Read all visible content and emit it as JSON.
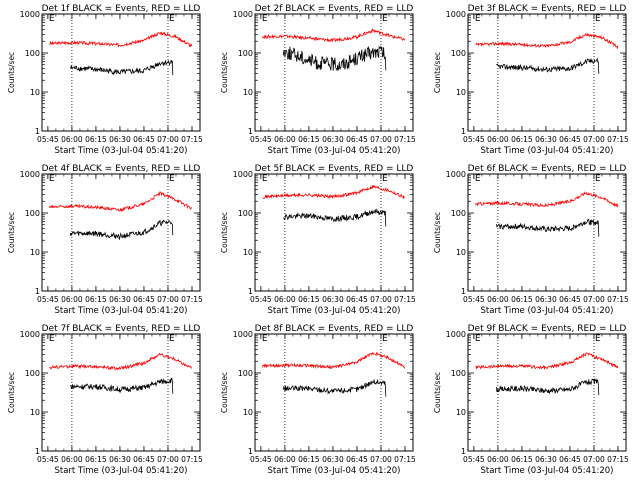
{
  "chart_data": [
    {
      "type": "line",
      "title": "Det 1f BLACK = Events, RED = LLD",
      "xlabel": "Start Time (03-Jul-04 05:41:20)",
      "ylabel": "Counts/sec",
      "x_tick_labels": [
        "05:45",
        "06:00",
        "06:15",
        "06:30",
        "06:45",
        "07:00",
        "07:15"
      ],
      "y_tick_labels": [
        "1",
        "10",
        "100",
        "1000"
      ],
      "ylim": [
        1,
        1000
      ],
      "y_scale": "log",
      "dotted_vlines": [
        "06:00",
        "07:00"
      ],
      "markers": [
        {
          "time": "05:45",
          "text": "E"
        },
        {
          "time": "07:00",
          "text": "E"
        }
      ],
      "series": [
        {
          "color": "#ff0000",
          "t": [
            "05:46",
            "06:00",
            "06:15",
            "06:30",
            "06:45",
            "06:55",
            "07:05",
            "07:15"
          ],
          "values": [
            175,
            185,
            175,
            160,
            210,
            330,
            260,
            150
          ]
        },
        {
          "color": "#000000",
          "t": [
            "05:59",
            "06:15",
            "06:30",
            "06:45",
            "06:55",
            "07:03"
          ],
          "values": [
            42,
            38,
            32,
            35,
            55,
            60
          ]
        }
      ]
    },
    {
      "type": "line",
      "title": "Det 2f BLACK = Events, RED = LLD",
      "xlabel": "Start Time (03-Jul-04 05:41:20)",
      "ylabel": "Counts/sec",
      "x_tick_labels": [
        "05:45",
        "06:00",
        "06:15",
        "06:30",
        "06:45",
        "07:00",
        "07:15"
      ],
      "y_tick_labels": [
        "1",
        "10",
        "100",
        "1000"
      ],
      "ylim": [
        1,
        1000
      ],
      "y_scale": "log",
      "dotted_vlines": [
        "06:00",
        "07:00"
      ],
      "markers": [
        {
          "time": "05:45",
          "text": "E"
        },
        {
          "time": "07:00",
          "text": "E"
        }
      ],
      "series": [
        {
          "color": "#ff0000",
          "t": [
            "05:46",
            "06:00",
            "06:15",
            "06:30",
            "06:45",
            "06:55",
            "07:05",
            "07:15"
          ],
          "values": [
            260,
            270,
            240,
            210,
            260,
            380,
            280,
            220
          ]
        },
        {
          "color": "#000000",
          "t": [
            "05:59",
            "06:10",
            "06:20",
            "06:35",
            "06:50",
            "07:00",
            "07:03"
          ],
          "values": [
            110,
            80,
            55,
            50,
            90,
            110,
            80
          ]
        }
      ]
    },
    {
      "type": "line",
      "title": "Det 3f BLACK = Events, RED = LLD",
      "xlabel": "Start Time (03-Jul-04 05:41:20)",
      "ylabel": "Counts/sec",
      "x_tick_labels": [
        "05:45",
        "06:00",
        "06:15",
        "06:30",
        "06:45",
        "07:00",
        "07:15"
      ],
      "y_tick_labels": [
        "1",
        "10",
        "100",
        "1000"
      ],
      "ylim": [
        1,
        1000
      ],
      "y_scale": "log",
      "dotted_vlines": [
        "06:00",
        "07:00"
      ],
      "markers": [
        {
          "time": "05:45",
          "text": "E"
        },
        {
          "time": "07:00",
          "text": "E"
        }
      ],
      "series": [
        {
          "color": "#ff0000",
          "t": [
            "05:46",
            "06:00",
            "06:15",
            "06:30",
            "06:45",
            "06:55",
            "07:05",
            "07:15"
          ],
          "values": [
            160,
            175,
            165,
            150,
            190,
            300,
            250,
            140
          ]
        },
        {
          "color": "#000000",
          "t": [
            "05:59",
            "06:15",
            "06:30",
            "06:45",
            "06:55",
            "07:03"
          ],
          "values": [
            45,
            42,
            38,
            40,
            60,
            65
          ]
        }
      ]
    },
    {
      "type": "line",
      "title": "Det 4f BLACK = Events, RED = LLD",
      "xlabel": "Start Time (03-Jul-04 05:41:20)",
      "ylabel": "Counts/sec",
      "x_tick_labels": [
        "05:45",
        "06:00",
        "06:15",
        "06:30",
        "06:45",
        "07:00",
        "07:15"
      ],
      "y_tick_labels": [
        "1",
        "10",
        "100",
        "1000"
      ],
      "ylim": [
        1,
        1000
      ],
      "y_scale": "log",
      "dotted_vlines": [
        "06:00",
        "07:00"
      ],
      "markers": [
        {
          "time": "05:45",
          "text": "E"
        },
        {
          "time": "07:00",
          "text": "E"
        }
      ],
      "series": [
        {
          "color": "#ff0000",
          "t": [
            "05:46",
            "06:00",
            "06:15",
            "06:30",
            "06:45",
            "06:55",
            "07:05",
            "07:15"
          ],
          "values": [
            140,
            150,
            140,
            120,
            170,
            320,
            220,
            130
          ]
        },
        {
          "color": "#000000",
          "t": [
            "05:59",
            "06:15",
            "06:30",
            "06:45",
            "06:55",
            "07:03"
          ],
          "values": [
            30,
            30,
            25,
            32,
            55,
            60
          ]
        }
      ]
    },
    {
      "type": "line",
      "title": "Det 5f BLACK = Events, RED = LLD",
      "xlabel": "Start Time (03-Jul-04 05:41:20)",
      "ylabel": "Counts/sec",
      "x_tick_labels": [
        "05:45",
        "06:00",
        "06:15",
        "06:30",
        "06:45",
        "07:00",
        "07:15"
      ],
      "y_tick_labels": [
        "1",
        "10",
        "100",
        "1000"
      ],
      "ylim": [
        1,
        1000
      ],
      "y_scale": "log",
      "dotted_vlines": [
        "06:00",
        "07:00"
      ],
      "markers": [
        {
          "time": "05:45",
          "text": "E"
        },
        {
          "time": "07:00",
          "text": "E"
        }
      ],
      "series": [
        {
          "color": "#ff0000",
          "t": [
            "05:46",
            "06:00",
            "06:15",
            "06:30",
            "06:45",
            "06:55",
            "07:05",
            "07:15"
          ],
          "values": [
            260,
            280,
            290,
            260,
            330,
            480,
            380,
            250
          ]
        },
        {
          "color": "#000000",
          "t": [
            "05:59",
            "06:15",
            "06:30",
            "06:45",
            "06:55",
            "07:03"
          ],
          "values": [
            80,
            85,
            70,
            80,
            110,
            100
          ]
        }
      ]
    },
    {
      "type": "line",
      "title": "Det 6f BLACK = Events, RED = LLD",
      "xlabel": "Start Time (03-Jul-04 05:41:20)",
      "ylabel": "Counts/sec",
      "x_tick_labels": [
        "05:45",
        "06:00",
        "06:15",
        "06:30",
        "06:45",
        "07:00",
        "07:15"
      ],
      "y_tick_labels": [
        "1",
        "10",
        "100",
        "1000"
      ],
      "ylim": [
        1,
        1000
      ],
      "y_scale": "log",
      "dotted_vlines": [
        "06:00",
        "07:00"
      ],
      "markers": [
        {
          "time": "05:45",
          "text": "E"
        },
        {
          "time": "07:00",
          "text": "E"
        }
      ],
      "series": [
        {
          "color": "#ff0000",
          "t": [
            "05:46",
            "06:00",
            "06:15",
            "06:30",
            "06:45",
            "06:55",
            "07:05",
            "07:15"
          ],
          "values": [
            170,
            180,
            170,
            155,
            200,
            330,
            250,
            150
          ]
        },
        {
          "color": "#000000",
          "t": [
            "05:59",
            "06:15",
            "06:30",
            "06:45",
            "06:55",
            "07:03"
          ],
          "values": [
            45,
            45,
            38,
            40,
            60,
            55
          ]
        }
      ]
    },
    {
      "type": "line",
      "title": "Det 7f BLACK = Events, RED = LLD",
      "xlabel": "Start Time (03-Jul-04 05:41:20)",
      "ylabel": "Counts/sec",
      "x_tick_labels": [
        "05:45",
        "06:00",
        "06:15",
        "06:30",
        "06:45",
        "07:00",
        "07:15"
      ],
      "y_tick_labels": [
        "1",
        "10",
        "100",
        "1000"
      ],
      "ylim": [
        1,
        1000
      ],
      "y_scale": "log",
      "dotted_vlines": [
        "06:00",
        "07:00"
      ],
      "markers": [
        {
          "time": "05:45",
          "text": "E"
        },
        {
          "time": "07:00",
          "text": "E"
        }
      ],
      "series": [
        {
          "color": "#ff0000",
          "t": [
            "05:46",
            "06:00",
            "06:15",
            "06:30",
            "06:45",
            "06:55",
            "07:05",
            "07:15"
          ],
          "values": [
            140,
            150,
            145,
            130,
            180,
            300,
            220,
            130
          ]
        },
        {
          "color": "#000000",
          "t": [
            "05:59",
            "06:15",
            "06:30",
            "06:45",
            "06:55",
            "07:03"
          ],
          "values": [
            45,
            45,
            38,
            42,
            60,
            65
          ]
        }
      ]
    },
    {
      "type": "line",
      "title": "Det 8f BLACK = Events, RED = LLD",
      "xlabel": "Start Time (03-Jul-04 05:41:20)",
      "ylabel": "Counts/sec",
      "x_tick_labels": [
        "05:45",
        "06:00",
        "06:15",
        "06:30",
        "06:45",
        "07:00",
        "07:15"
      ],
      "y_tick_labels": [
        "1",
        "10",
        "100",
        "1000"
      ],
      "ylim": [
        1,
        1000
      ],
      "y_scale": "log",
      "dotted_vlines": [
        "06:00",
        "07:00"
      ],
      "markers": [
        {
          "time": "05:45",
          "text": "E"
        },
        {
          "time": "07:00",
          "text": "E"
        }
      ],
      "series": [
        {
          "color": "#ff0000",
          "t": [
            "05:46",
            "06:00",
            "06:15",
            "06:30",
            "06:45",
            "06:55",
            "07:05",
            "07:15"
          ],
          "values": [
            150,
            160,
            155,
            140,
            190,
            330,
            240,
            140
          ]
        },
        {
          "color": "#000000",
          "t": [
            "05:59",
            "06:15",
            "06:30",
            "06:45",
            "06:55",
            "07:03"
          ],
          "values": [
            40,
            40,
            34,
            38,
            60,
            55
          ]
        }
      ]
    },
    {
      "type": "line",
      "title": "Det 9f BLACK = Events, RED = LLD",
      "xlabel": "Start Time (03-Jul-04 05:41:20)",
      "ylabel": "Counts/sec",
      "x_tick_labels": [
        "05:45",
        "06:00",
        "06:15",
        "06:30",
        "06:45",
        "07:00",
        "07:15"
      ],
      "y_tick_labels": [
        "1",
        "10",
        "100",
        "1000"
      ],
      "ylim": [
        1,
        1000
      ],
      "y_scale": "log",
      "dotted_vlines": [
        "06:00",
        "07:00"
      ],
      "markers": [
        {
          "time": "05:45",
          "text": "E"
        },
        {
          "time": "07:00",
          "text": "E"
        }
      ],
      "series": [
        {
          "color": "#ff0000",
          "t": [
            "05:46",
            "06:00",
            "06:15",
            "06:30",
            "06:45",
            "06:55",
            "07:05",
            "07:15"
          ],
          "values": [
            140,
            150,
            150,
            135,
            185,
            310,
            230,
            140
          ]
        },
        {
          "color": "#000000",
          "t": [
            "05:59",
            "06:15",
            "06:30",
            "06:45",
            "06:55",
            "07:03"
          ],
          "values": [
            38,
            40,
            35,
            38,
            58,
            60
          ]
        }
      ]
    }
  ]
}
